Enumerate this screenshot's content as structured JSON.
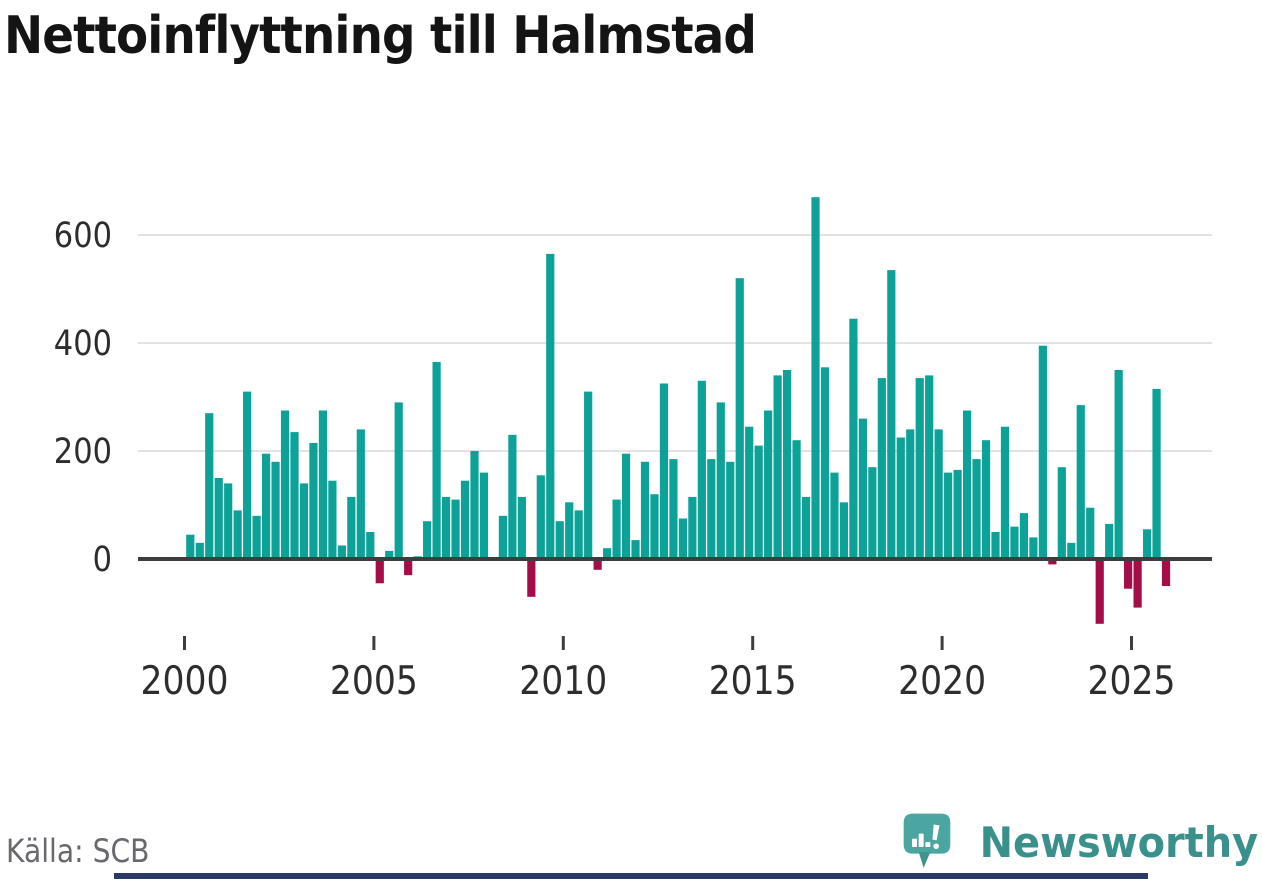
{
  "title": "Nettoinflyttning till Halmstad",
  "source": "Källa: SCB",
  "logo": {
    "brand": "Newsworthy"
  },
  "colors": {
    "positive_bar": "#0ca298",
    "negative_bar": "#a50d48",
    "axis": "#3d3d3d",
    "grid": "#e2e2e2",
    "tick_label": "#2d2d2d",
    "title_text": "#141414",
    "source_text": "#68686d",
    "brand_teal": "#3a918c",
    "logo_bubble": "#4ba6a1",
    "logo_bubble_dark": "#3f948e",
    "footer_bar": "#2b3a64"
  },
  "chart_data": {
    "type": "bar",
    "title": "Nettoinflyttning till Halmstad",
    "xlabel": "",
    "ylabel": "",
    "x_unit": "quarter",
    "yticks": [
      0,
      200,
      400,
      600
    ],
    "xticks": [
      2000,
      2005,
      2010,
      2015,
      2020,
      2025
    ],
    "ylim": [
      -130,
      700
    ],
    "grid": "horizontal",
    "legend": "none",
    "bar_color_rule": "teal when value >= 0, crimson when value < 0",
    "years": [
      {
        "year": 2000,
        "q": [
          45,
          30,
          270,
          150
        ]
      },
      {
        "year": 2001,
        "q": [
          140,
          90,
          310,
          80
        ]
      },
      {
        "year": 2002,
        "q": [
          195,
          180,
          275,
          235
        ]
      },
      {
        "year": 2003,
        "q": [
          140,
          215,
          275,
          145
        ]
      },
      {
        "year": 2004,
        "q": [
          25,
          115,
          240,
          50
        ]
      },
      {
        "year": 2005,
        "q": [
          -45,
          15,
          290,
          -30
        ]
      },
      {
        "year": 2006,
        "q": [
          5,
          70,
          365,
          115
        ]
      },
      {
        "year": 2007,
        "q": [
          110,
          145,
          200,
          160
        ]
      },
      {
        "year": 2008,
        "q": [
          0,
          80,
          230,
          115
        ]
      },
      {
        "year": 2009,
        "q": [
          -70,
          155,
          565,
          70
        ]
      },
      {
        "year": 2010,
        "q": [
          105,
          90,
          310,
          -20
        ]
      },
      {
        "year": 2011,
        "q": [
          20,
          110,
          195,
          35
        ]
      },
      {
        "year": 2012,
        "q": [
          180,
          120,
          325,
          185
        ]
      },
      {
        "year": 2013,
        "q": [
          75,
          115,
          330,
          185
        ]
      },
      {
        "year": 2014,
        "q": [
          290,
          180,
          520,
          245
        ]
      },
      {
        "year": 2015,
        "q": [
          210,
          275,
          340,
          350
        ]
      },
      {
        "year": 2016,
        "q": [
          220,
          115,
          670,
          355
        ]
      },
      {
        "year": 2017,
        "q": [
          160,
          105,
          445,
          260
        ]
      },
      {
        "year": 2018,
        "q": [
          170,
          335,
          535,
          225
        ]
      },
      {
        "year": 2019,
        "q": [
          240,
          335,
          340,
          240
        ]
      },
      {
        "year": 2020,
        "q": [
          160,
          165,
          275,
          185
        ]
      },
      {
        "year": 2021,
        "q": [
          220,
          50,
          245,
          60
        ]
      },
      {
        "year": 2022,
        "q": [
          85,
          40,
          395,
          -10
        ]
      },
      {
        "year": 2023,
        "q": [
          170,
          30,
          285,
          95
        ]
      },
      {
        "year": 2024,
        "q": [
          -120,
          65,
          350,
          -55
        ]
      },
      {
        "year": 2025,
        "q": [
          -90,
          55,
          315,
          -50
        ]
      }
    ]
  }
}
